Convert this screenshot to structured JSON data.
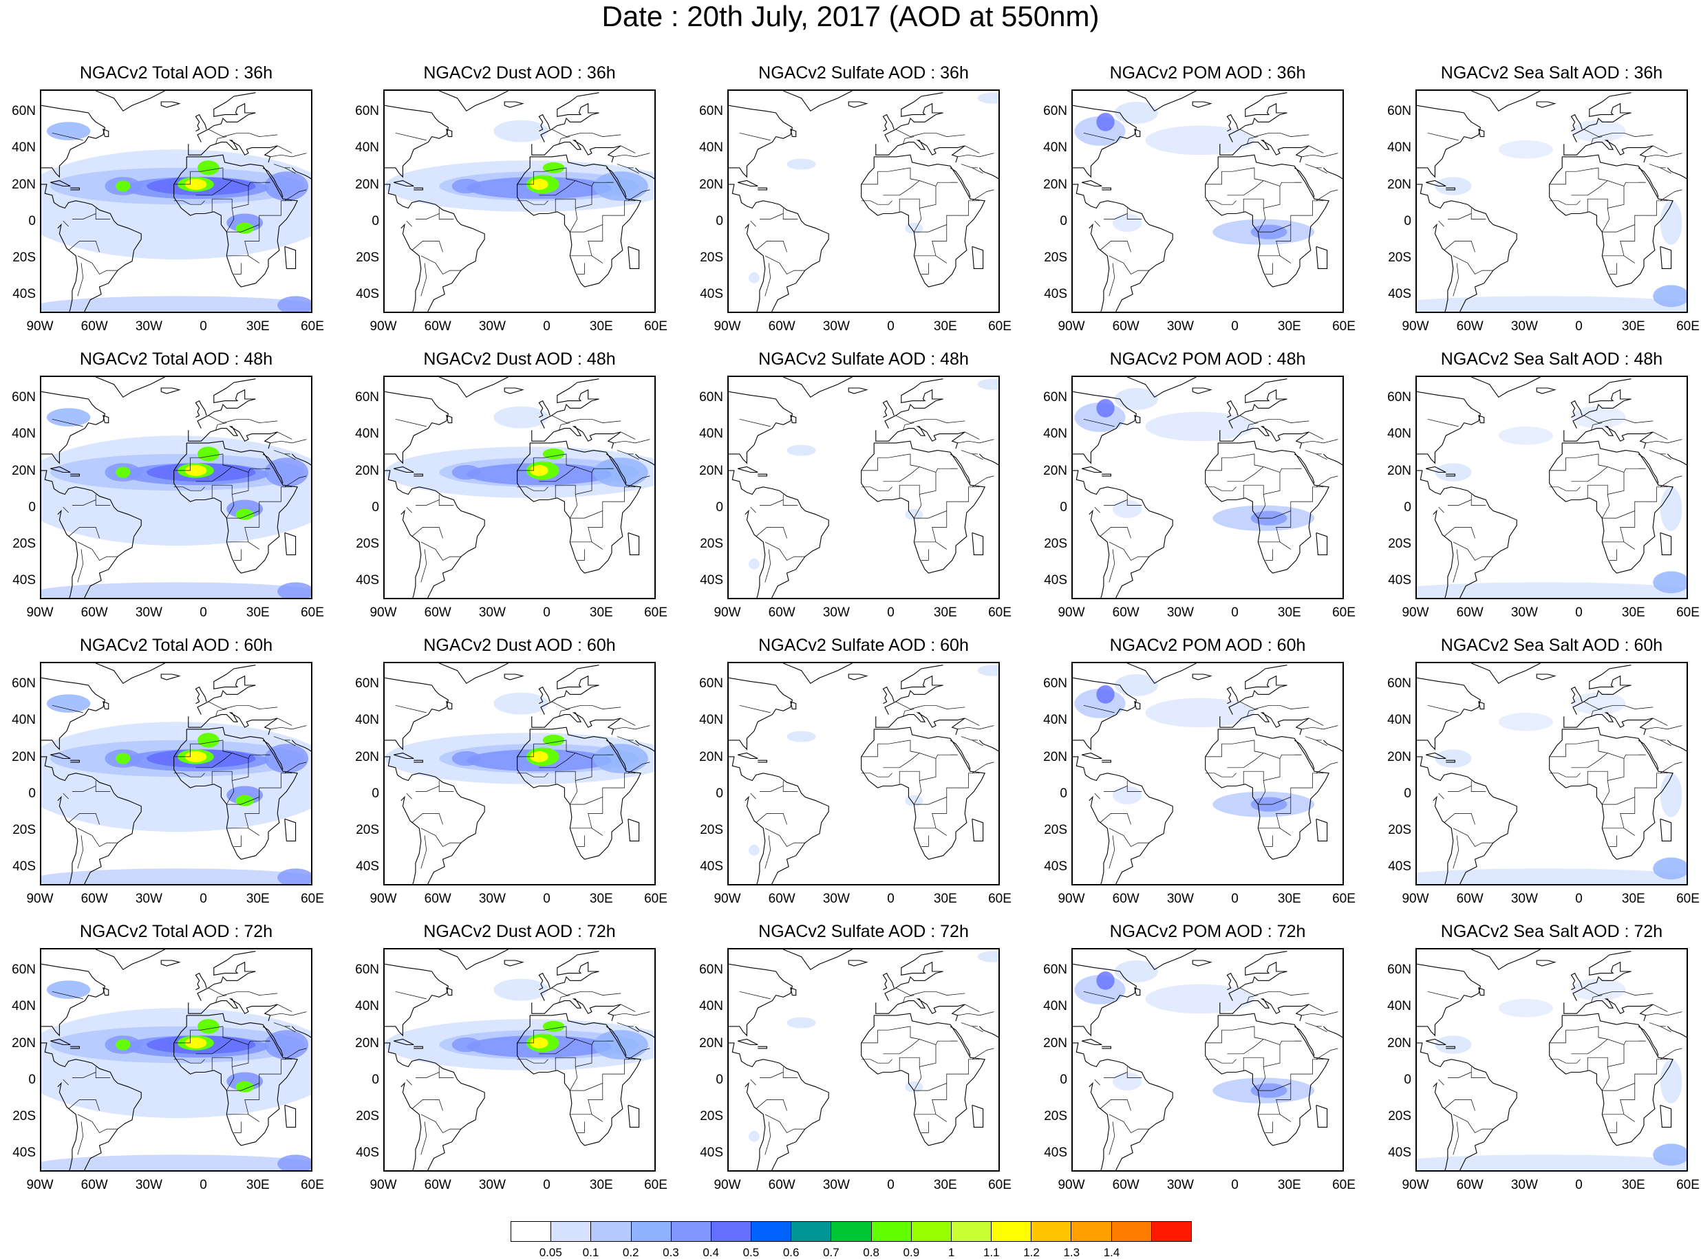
{
  "title": "Date : 20th July, 2017 (AOD at 550nm)",
  "panels": [
    [
      "NGACv2 Total AOD : 36h",
      "NGACv2 Dust AOD : 36h",
      "NGACv2 Sulfate AOD : 36h",
      "NGACv2 POM AOD : 36h",
      "NGACv2 Sea Salt AOD : 36h"
    ],
    [
      "NGACv2 Total AOD : 48h",
      "NGACv2 Dust AOD : 48h",
      "NGACv2 Sulfate AOD : 48h",
      "NGACv2 POM AOD : 48h",
      "NGACv2 Sea Salt AOD : 48h"
    ],
    [
      "NGACv2 Total AOD : 60h",
      "NGACv2 Dust AOD : 60h",
      "NGACv2 Sulfate AOD : 60h",
      "NGACv2 POM AOD : 60h",
      "NGACv2 Sea Salt AOD : 60h"
    ],
    [
      "NGACv2 Total AOD : 72h",
      "NGACv2 Dust AOD : 72h",
      "NGACv2 Sulfate AOD : 72h",
      "NGACv2 POM AOD : 72h",
      "NGACv2 Sea Salt  AOD : 72h"
    ]
  ],
  "lat_labels": [
    "60N",
    "40N",
    "20N",
    "0",
    "20S",
    "40S"
  ],
  "lon_labels": [
    "90W",
    "60W",
    "30W",
    "0",
    "30E",
    "60E"
  ],
  "colorbar": {
    "colors": [
      "#ffffff",
      "#d6e2ff",
      "#b5c9ff",
      "#8eb2ff",
      "#7f96ff",
      "#6370ff",
      "#0063ff",
      "#009696",
      "#00c633",
      "#63ff00",
      "#96ff00",
      "#c6ff33",
      "#ffff00",
      "#ffc600",
      "#ffa000",
      "#ff7c00",
      "#ff1900"
    ],
    "labels": [
      "0.05",
      "0.1",
      "0.2",
      "0.3",
      "0.4",
      "0.5",
      "0.6",
      "0.7",
      "0.8",
      "0.9",
      "1",
      "1.1",
      "1.2",
      "1.3",
      "1.4"
    ]
  }
}
